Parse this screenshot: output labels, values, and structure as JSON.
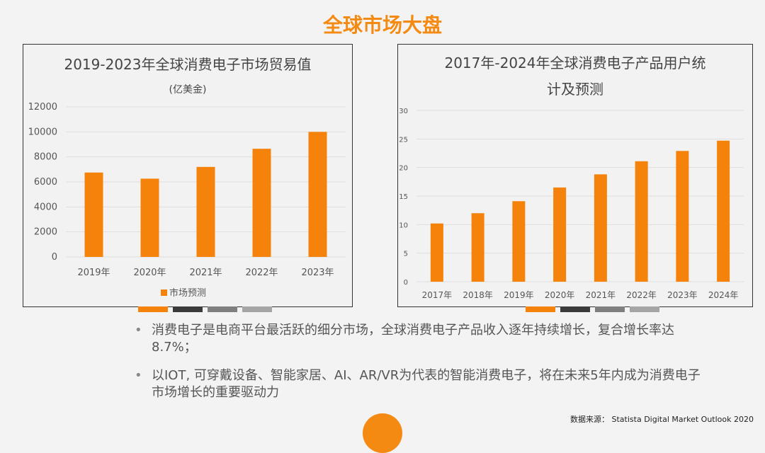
{
  "page_title": "全球市场大盘",
  "colors": {
    "accent": "#f58a12",
    "bar": "#f5820a",
    "strips": [
      "#f5820a",
      "#3a3a3a",
      "#7f7f7f",
      "#a5a5a5"
    ]
  },
  "chart_data": [
    {
      "type": "bar",
      "title": "2019-2023年全球消费电子市场贸易值",
      "subtitle": "(亿美金)",
      "categories": [
        "2019年",
        "2020年",
        "2021年",
        "2022年",
        "2023年"
      ],
      "series": [
        {
          "name": "市场预测",
          "values": [
            6750,
            6260,
            7200,
            8650,
            10000
          ]
        }
      ],
      "ylim": [
        0,
        12000
      ],
      "yticks": [
        0,
        2000,
        4000,
        6000,
        8000,
        10000,
        12000
      ],
      "grid": true,
      "legend": "bottom"
    },
    {
      "type": "bar",
      "title": "2017年-2024年全球消费电子产品用户统计及预测",
      "title_lines": [
        "2017年-2024年全球消费电子产品用户统",
        "计及预测"
      ],
      "categories": [
        "2017年",
        "2018年",
        "2019年",
        "2020年",
        "2021年",
        "2022年",
        "2023年",
        "2024年"
      ],
      "series": [
        {
          "values": [
            10.2,
            12.0,
            14.1,
            16.5,
            18.8,
            21.1,
            22.9,
            24.7
          ]
        }
      ],
      "ylim": [
        0,
        30
      ],
      "yticks": [
        0,
        5,
        10,
        15,
        20,
        25,
        30
      ],
      "grid": true
    }
  ],
  "bullets": [
    "消费电子是电商平台最活跃的细分市场，全球消费电子产品收入逐年持续增长，复合增长率达8.7%；",
    "以IOT, 可穿戴设备、智能家居、AI、AR/VR为代表的智能消费电子，将在未来5年内成为消费电子市场增长的重要驱动力"
  ],
  "source": "数据来源： Statista Digital Market Outlook 2020"
}
